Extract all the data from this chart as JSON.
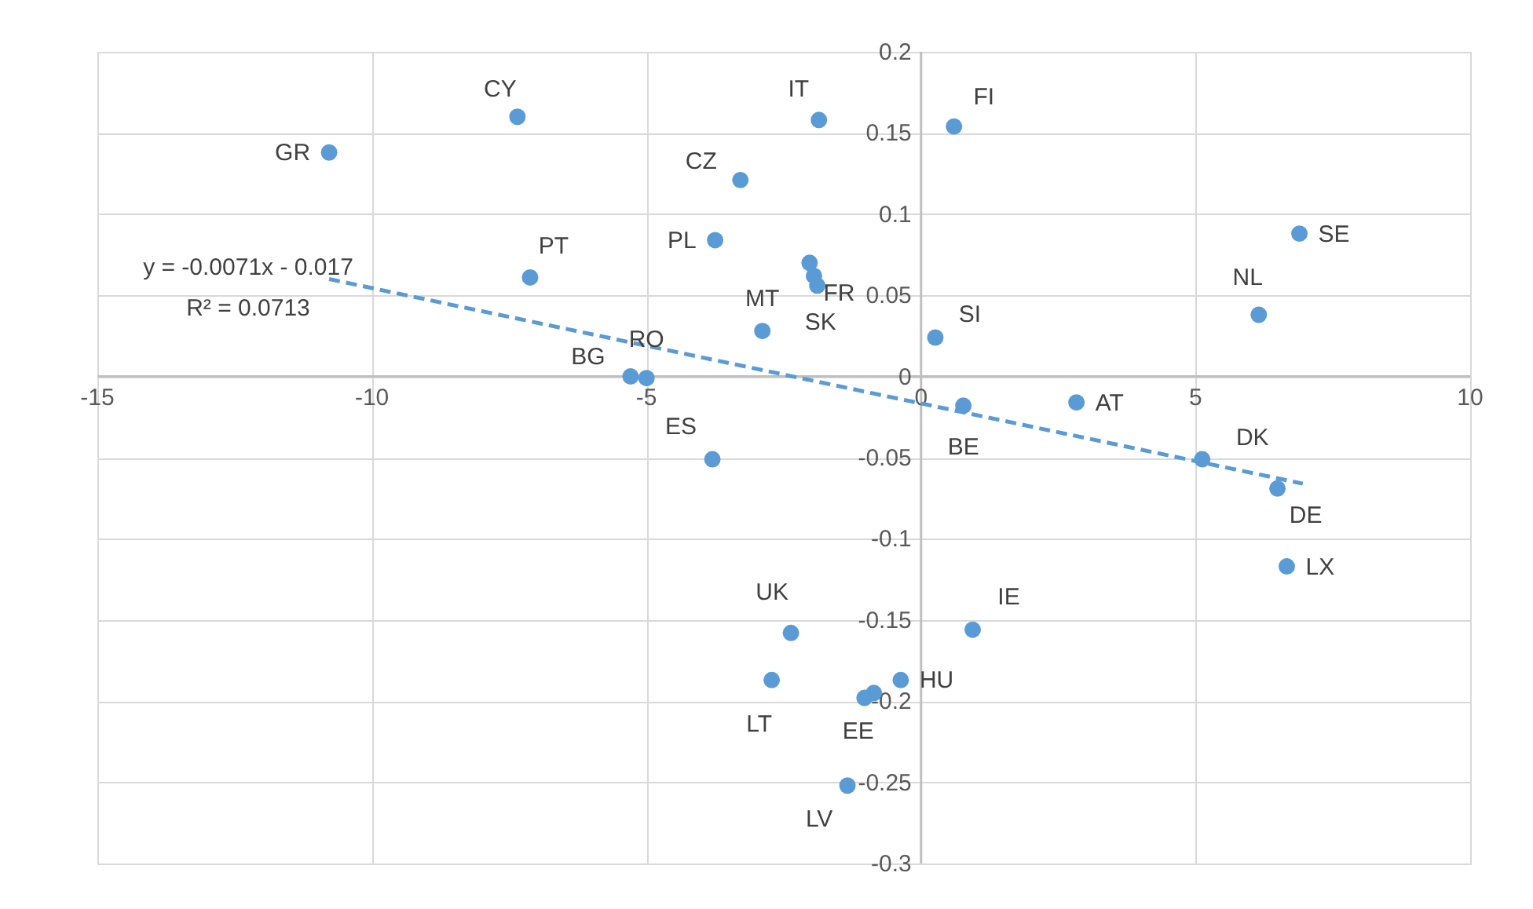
{
  "chart_data": {
    "type": "scatter",
    "xlim": [
      -15,
      10
    ],
    "ylim": [
      -0.3,
      0.2
    ],
    "xticks": [
      -15,
      -10,
      -5,
      0,
      5,
      10
    ],
    "yticks": [
      -0.3,
      -0.25,
      -0.2,
      -0.15,
      -0.1,
      -0.05,
      0,
      0.05,
      0.1,
      0.15,
      0.2
    ],
    "grid": true,
    "series": [
      {
        "color": "#5b9bd5",
        "marker": "circle",
        "x": [
          -10.78,
          -7.35,
          -1.86,
          0.6,
          -3.29,
          -3.75,
          -7.12,
          6.89,
          6.15,
          -1.95,
          -2.03,
          -1.89,
          -2.89,
          0.26,
          -5.29,
          -5.0,
          -3.8,
          0.77,
          2.83,
          5.12,
          6.49,
          6.66,
          -2.37,
          0.94,
          -2.72,
          -0.37,
          -1.03,
          -0.86,
          -1.34
        ],
        "values": [
          0.138,
          0.16,
          0.158,
          0.154,
          0.121,
          0.084,
          0.061,
          0.088,
          0.038,
          0.062,
          0.07,
          0.056,
          0.028,
          0.024,
          0.0,
          -0.001,
          -0.051,
          -0.018,
          -0.016,
          -0.051,
          -0.069,
          -0.117,
          -0.158,
          -0.156,
          -0.187,
          -0.187,
          -0.198,
          -0.195,
          -0.252
        ]
      },
      {
        "type": "line",
        "color": "#5b9bd5",
        "line_style": "dashed",
        "marker": "none",
        "x": [
          -10.78,
          6.95
        ],
        "values": [
          0.06,
          -0.066
        ]
      }
    ],
    "annotations": [
      "y = -0.0071x - 0.017",
      "R² = 0.0713",
      {
        "text": "GR",
        "x": -10.78,
        "y": 0.138
      },
      {
        "text": "CY",
        "x": -7.35,
        "y": 0.16
      },
      {
        "text": "IT",
        "x": -1.86,
        "y": 0.158
      },
      {
        "text": "FI",
        "x": 0.6,
        "y": 0.154
      },
      {
        "text": "CZ",
        "x": -3.29,
        "y": 0.121
      },
      {
        "text": "PL",
        "x": -3.75,
        "y": 0.084
      },
      {
        "text": "PT",
        "x": -7.12,
        "y": 0.061
      },
      {
        "text": "SE",
        "x": 6.89,
        "y": 0.088
      },
      {
        "text": "NL",
        "x": 6.15,
        "y": 0.038
      },
      {
        "text": "FR",
        "x": -1.95,
        "y": 0.062
      },
      {
        "text": "SK",
        "x": -1.89,
        "y": 0.056
      },
      {
        "text": "MT",
        "x": -2.89,
        "y": 0.028
      },
      {
        "text": "SI",
        "x": 0.26,
        "y": 0.024
      },
      {
        "text": "BG",
        "x": -5.29,
        "y": 0.0
      },
      {
        "text": "RO",
        "x": -5.0,
        "y": -0.001
      },
      {
        "text": "ES",
        "x": -3.8,
        "y": -0.051
      },
      {
        "text": "BE",
        "x": 0.77,
        "y": -0.018
      },
      {
        "text": "AT",
        "x": 2.83,
        "y": -0.016
      },
      {
        "text": "DK",
        "x": 5.12,
        "y": -0.051
      },
      {
        "text": "DE",
        "x": 6.49,
        "y": -0.069
      },
      {
        "text": "LX",
        "x": 6.66,
        "y": -0.117
      },
      {
        "text": "UK",
        "x": -2.37,
        "y": -0.158
      },
      {
        "text": "IE",
        "x": 0.94,
        "y": -0.156
      },
      {
        "text": "LT",
        "x": -2.72,
        "y": -0.187
      },
      {
        "text": "HU",
        "x": -0.37,
        "y": -0.187
      },
      {
        "text": "EE",
        "x": -1.03,
        "y": -0.198
      },
      {
        "text": "LV",
        "x": -1.34,
        "y": -0.252
      }
    ]
  }
}
